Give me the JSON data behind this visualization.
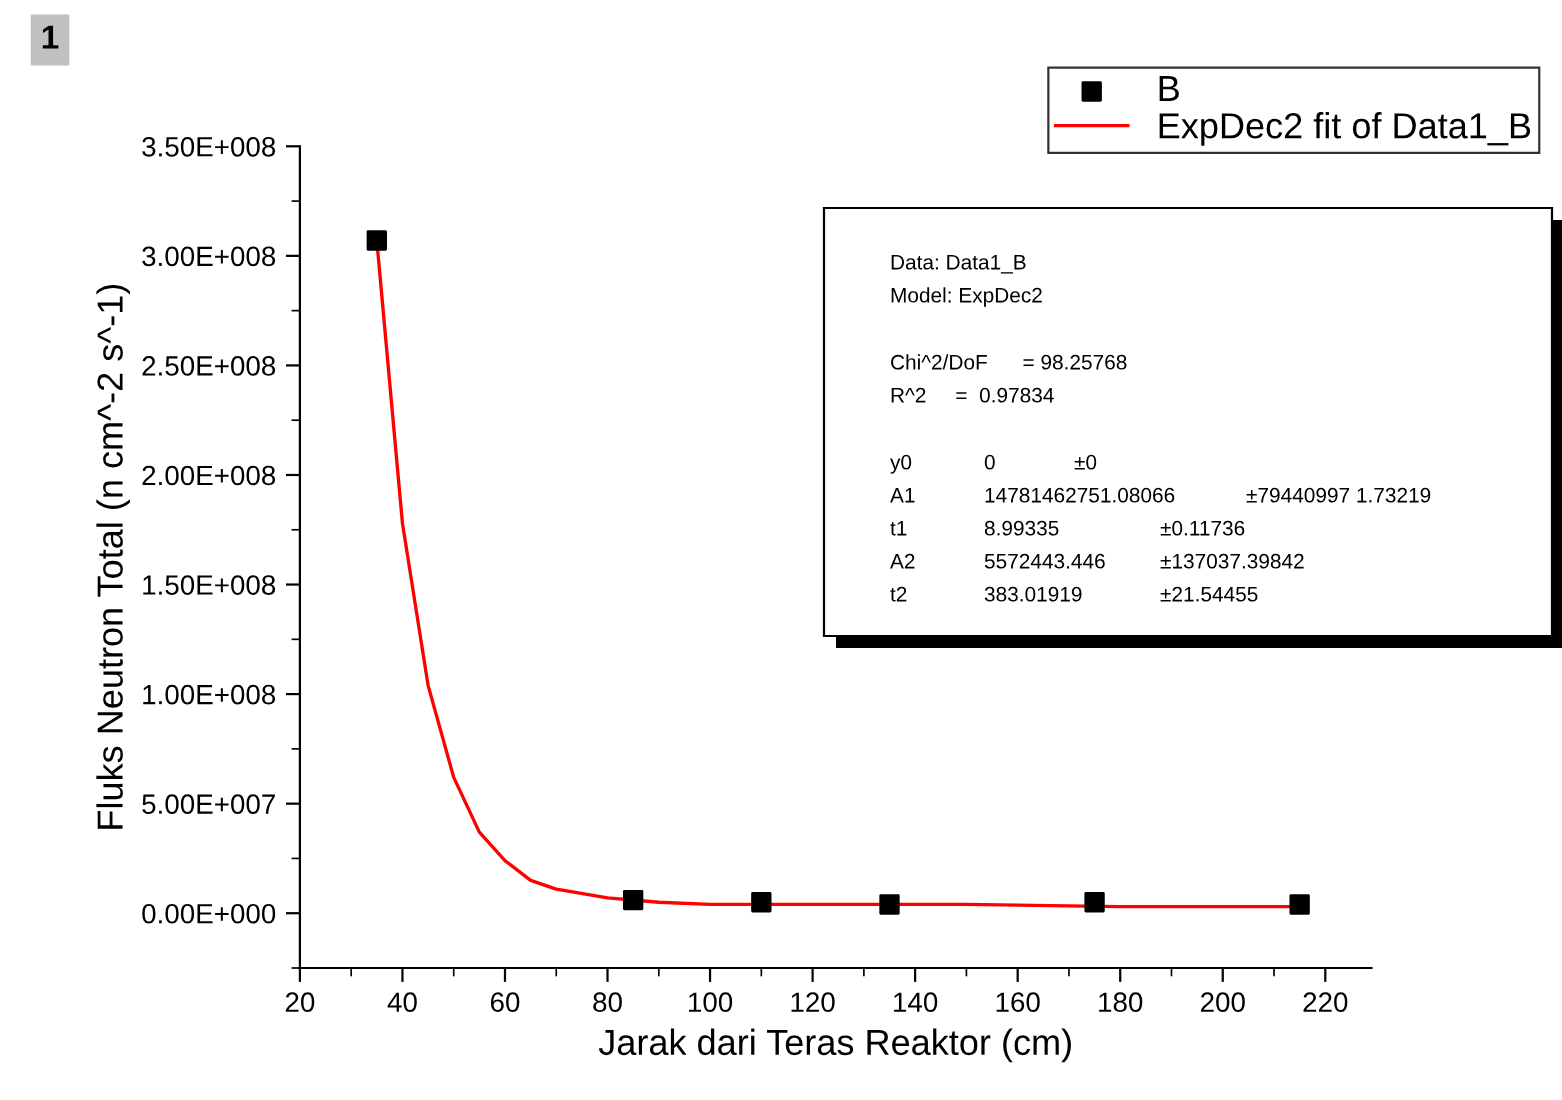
{
  "chart_data": {
    "type": "scatter",
    "xlabel": "Jarak dari Teras Reaktor (cm)",
    "ylabel": "Fluks Neutron Total (n cm^-2 s^-1)",
    "series": [
      {
        "name": "B",
        "color": "#000000",
        "marker": "square",
        "x": [
          35,
          85,
          110,
          135,
          175,
          215
        ],
        "values": [
          307000000,
          6000000,
          5000000,
          4000000,
          5000000,
          4000000
        ]
      },
      {
        "name": "ExpDec2 fit of Data1_B",
        "type": "line",
        "color": "#ff0000",
        "marker": "none",
        "line_style": "solid",
        "x": [
          35,
          40,
          45,
          50,
          55,
          60,
          65,
          70,
          80,
          90,
          100,
          120,
          150,
          180,
          215
        ],
        "values": [
          307000000,
          178000000,
          104000000,
          62000000,
          37000000,
          24000000,
          15000000,
          11000000,
          7000000,
          5000000,
          4000000,
          4000000,
          4000000,
          3000000,
          3000000
        ]
      }
    ],
    "xlim": [
      20,
      229
    ],
    "xticks": [
      20,
      40,
      60,
      80,
      100,
      120,
      140,
      160,
      180,
      200,
      220
    ],
    "ylim": [
      -25000000,
      350000000
    ],
    "yticks": [
      {
        "value": 0,
        "label": "0.00E+000"
      },
      {
        "value": 50000000,
        "label": "5.00E+007"
      },
      {
        "value": 100000000,
        "label": "1.00E+008"
      },
      {
        "value": 150000000,
        "label": "1.50E+008"
      },
      {
        "value": 200000000,
        "label": "2.00E+008"
      },
      {
        "value": 250000000,
        "label": "2.50E+008"
      },
      {
        "value": 300000000,
        "label": "3.00E+008"
      },
      {
        "value": 350000000,
        "label": "3.50E+008"
      }
    ],
    "grid": false,
    "legend": "top right",
    "annotations": [
      "1",
      "Data: Data1_B",
      "Model: ExpDec2",
      "Chi^2/DoF      = 98.25768",
      "R^2     =  0.97834",
      "y0\t0\t±0",
      "A1\t14781462751.08066\t±79440997 1.73219",
      "t1\t8.99335\t±0.11736",
      "A2\t5572443.446\t±137037.39842",
      "t2\t383.01919\t±21.54455"
    ]
  }
}
